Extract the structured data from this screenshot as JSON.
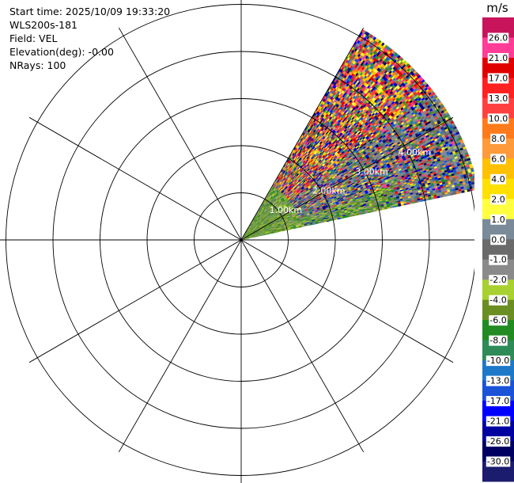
{
  "header": {
    "lines": [
      "Start time: 2025/10/09 19:33:20",
      "WLS200s-181",
      "Field: VEL",
      "Elevation(deg): -0.00",
      "NRays: 100"
    ]
  },
  "chart_data": {
    "type": "heatmap",
    "subtype": "ppi-radar-sector",
    "field": "VEL",
    "unit": "m/s",
    "sector_azimuth_deg": [
      30,
      78
    ],
    "max_range_km": 5.2,
    "range_rings_km": [
      1,
      2,
      3,
      4,
      5
    ],
    "range_ring_labels": [
      "1.00km",
      "2.00km",
      "3.00km",
      "4.00km"
    ],
    "spoke_step_deg": 30,
    "colorbar": {
      "label": "m/s",
      "ticks": [
        "26.0",
        "21.0",
        "17.0",
        "13.0",
        "10.0",
        "8.0",
        "6.0",
        "4.0",
        "2.0",
        "1.0",
        "0.0",
        "-1.0",
        "-2.0",
        "-4.0",
        "-6.0",
        "-8.0",
        "-10.0",
        "-13.0",
        "-17.0",
        "-21.0",
        "-26.0",
        "-30.0"
      ],
      "colors": [
        "#c8145a",
        "#ff3c96",
        "#e00000",
        "#ff2020",
        "#ff4040",
        "#ff7a1a",
        "#ff9a3a",
        "#ffc000",
        "#ffe000",
        "#ffff40",
        "#7a8a99",
        "#6a6a6a",
        "#8a8a8a",
        "#a8d030",
        "#6b8e23",
        "#228b22",
        "#2e8b57",
        "#1e78c8",
        "#1a52d8",
        "#0000ff",
        "#0000a0",
        "#000060",
        "#1c1c6e"
      ]
    },
    "legend_position": "right",
    "grid": true
  }
}
